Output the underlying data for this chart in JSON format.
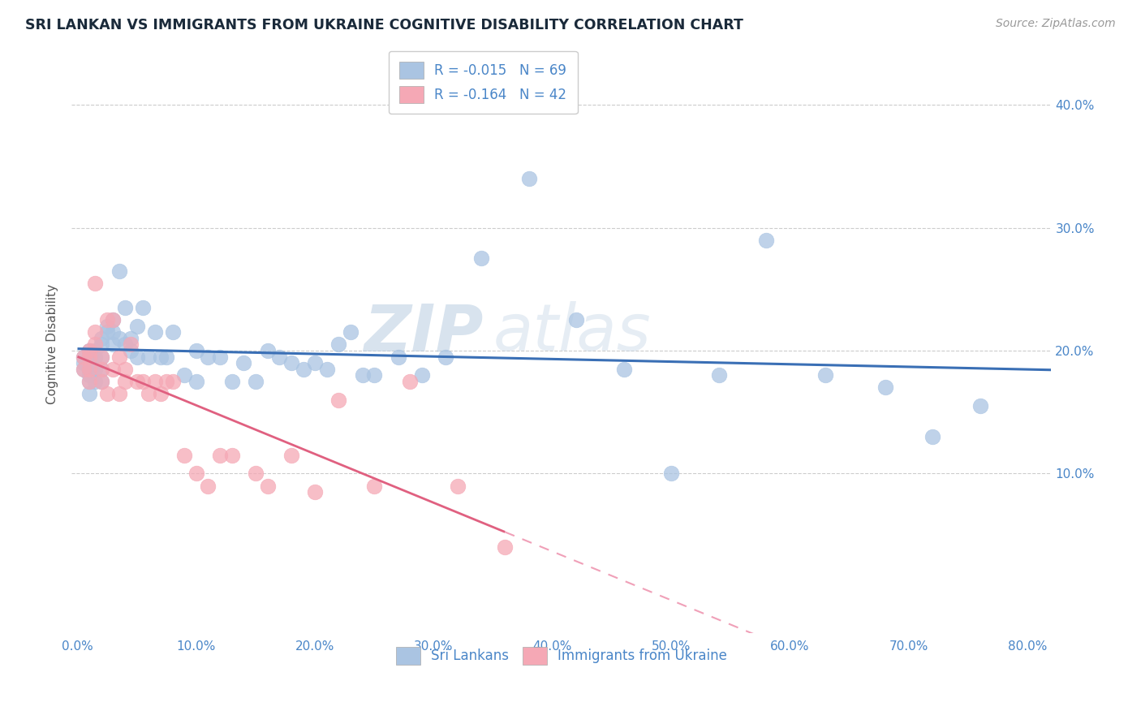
{
  "title": "SRI LANKAN VS IMMIGRANTS FROM UKRAINE COGNITIVE DISABILITY CORRELATION CHART",
  "source": "Source: ZipAtlas.com",
  "ylabel": "Cognitive Disability",
  "xlabel_ticks": [
    "0.0%",
    "10.0%",
    "20.0%",
    "30.0%",
    "40.0%",
    "50.0%",
    "60.0%",
    "70.0%",
    "80.0%"
  ],
  "xlabel_vals": [
    0.0,
    0.1,
    0.2,
    0.3,
    0.4,
    0.5,
    0.6,
    0.7,
    0.8
  ],
  "ytick_labels": [
    "10.0%",
    "20.0%",
    "30.0%",
    "40.0%"
  ],
  "ytick_vals": [
    0.1,
    0.2,
    0.3,
    0.4
  ],
  "xlim": [
    -0.005,
    0.82
  ],
  "ylim": [
    -0.03,
    0.44
  ],
  "sri_lankan_R": -0.015,
  "sri_lankan_N": 69,
  "ukraine_R": -0.164,
  "ukraine_N": 42,
  "sri_lankan_color": "#aac4e2",
  "ukraine_color": "#f5a8b5",
  "sri_lankan_line_color": "#3a6fb5",
  "ukraine_line_color": "#e06080",
  "ukraine_line_dashed_color": "#f0a0b8",
  "watermark_zip": "ZIP",
  "watermark_atlas": "atlas",
  "sri_lankan_x": [
    0.005,
    0.005,
    0.005,
    0.01,
    0.01,
    0.01,
    0.01,
    0.01,
    0.01,
    0.015,
    0.015,
    0.015,
    0.015,
    0.02,
    0.02,
    0.02,
    0.02,
    0.02,
    0.025,
    0.025,
    0.03,
    0.03,
    0.03,
    0.035,
    0.035,
    0.04,
    0.04,
    0.045,
    0.045,
    0.05,
    0.05,
    0.055,
    0.06,
    0.065,
    0.07,
    0.075,
    0.08,
    0.09,
    0.1,
    0.1,
    0.11,
    0.12,
    0.13,
    0.14,
    0.15,
    0.16,
    0.17,
    0.18,
    0.19,
    0.2,
    0.21,
    0.22,
    0.23,
    0.24,
    0.25,
    0.27,
    0.29,
    0.31,
    0.34,
    0.38,
    0.42,
    0.46,
    0.5,
    0.54,
    0.58,
    0.63,
    0.68,
    0.72,
    0.76
  ],
  "sri_lankan_y": [
    0.195,
    0.19,
    0.185,
    0.2,
    0.195,
    0.185,
    0.18,
    0.175,
    0.165,
    0.2,
    0.195,
    0.185,
    0.175,
    0.21,
    0.205,
    0.195,
    0.185,
    0.175,
    0.22,
    0.215,
    0.225,
    0.215,
    0.205,
    0.265,
    0.21,
    0.205,
    0.235,
    0.21,
    0.2,
    0.22,
    0.195,
    0.235,
    0.195,
    0.215,
    0.195,
    0.195,
    0.215,
    0.18,
    0.2,
    0.175,
    0.195,
    0.195,
    0.175,
    0.19,
    0.175,
    0.2,
    0.195,
    0.19,
    0.185,
    0.19,
    0.185,
    0.205,
    0.215,
    0.18,
    0.18,
    0.195,
    0.18,
    0.195,
    0.275,
    0.34,
    0.225,
    0.185,
    0.1,
    0.18,
    0.29,
    0.18,
    0.17,
    0.13,
    0.155
  ],
  "ukraine_x": [
    0.005,
    0.005,
    0.01,
    0.01,
    0.01,
    0.01,
    0.015,
    0.015,
    0.015,
    0.02,
    0.02,
    0.02,
    0.025,
    0.025,
    0.03,
    0.03,
    0.035,
    0.035,
    0.04,
    0.04,
    0.045,
    0.05,
    0.055,
    0.06,
    0.065,
    0.07,
    0.075,
    0.08,
    0.09,
    0.1,
    0.11,
    0.12,
    0.13,
    0.15,
    0.16,
    0.18,
    0.2,
    0.22,
    0.25,
    0.28,
    0.32,
    0.36
  ],
  "ukraine_y": [
    0.195,
    0.185,
    0.2,
    0.195,
    0.185,
    0.175,
    0.255,
    0.215,
    0.205,
    0.195,
    0.185,
    0.175,
    0.225,
    0.165,
    0.225,
    0.185,
    0.165,
    0.195,
    0.175,
    0.185,
    0.205,
    0.175,
    0.175,
    0.165,
    0.175,
    0.165,
    0.175,
    0.175,
    0.115,
    0.1,
    0.09,
    0.115,
    0.115,
    0.1,
    0.09,
    0.115,
    0.085,
    0.16,
    0.09,
    0.175,
    0.09,
    0.04
  ]
}
